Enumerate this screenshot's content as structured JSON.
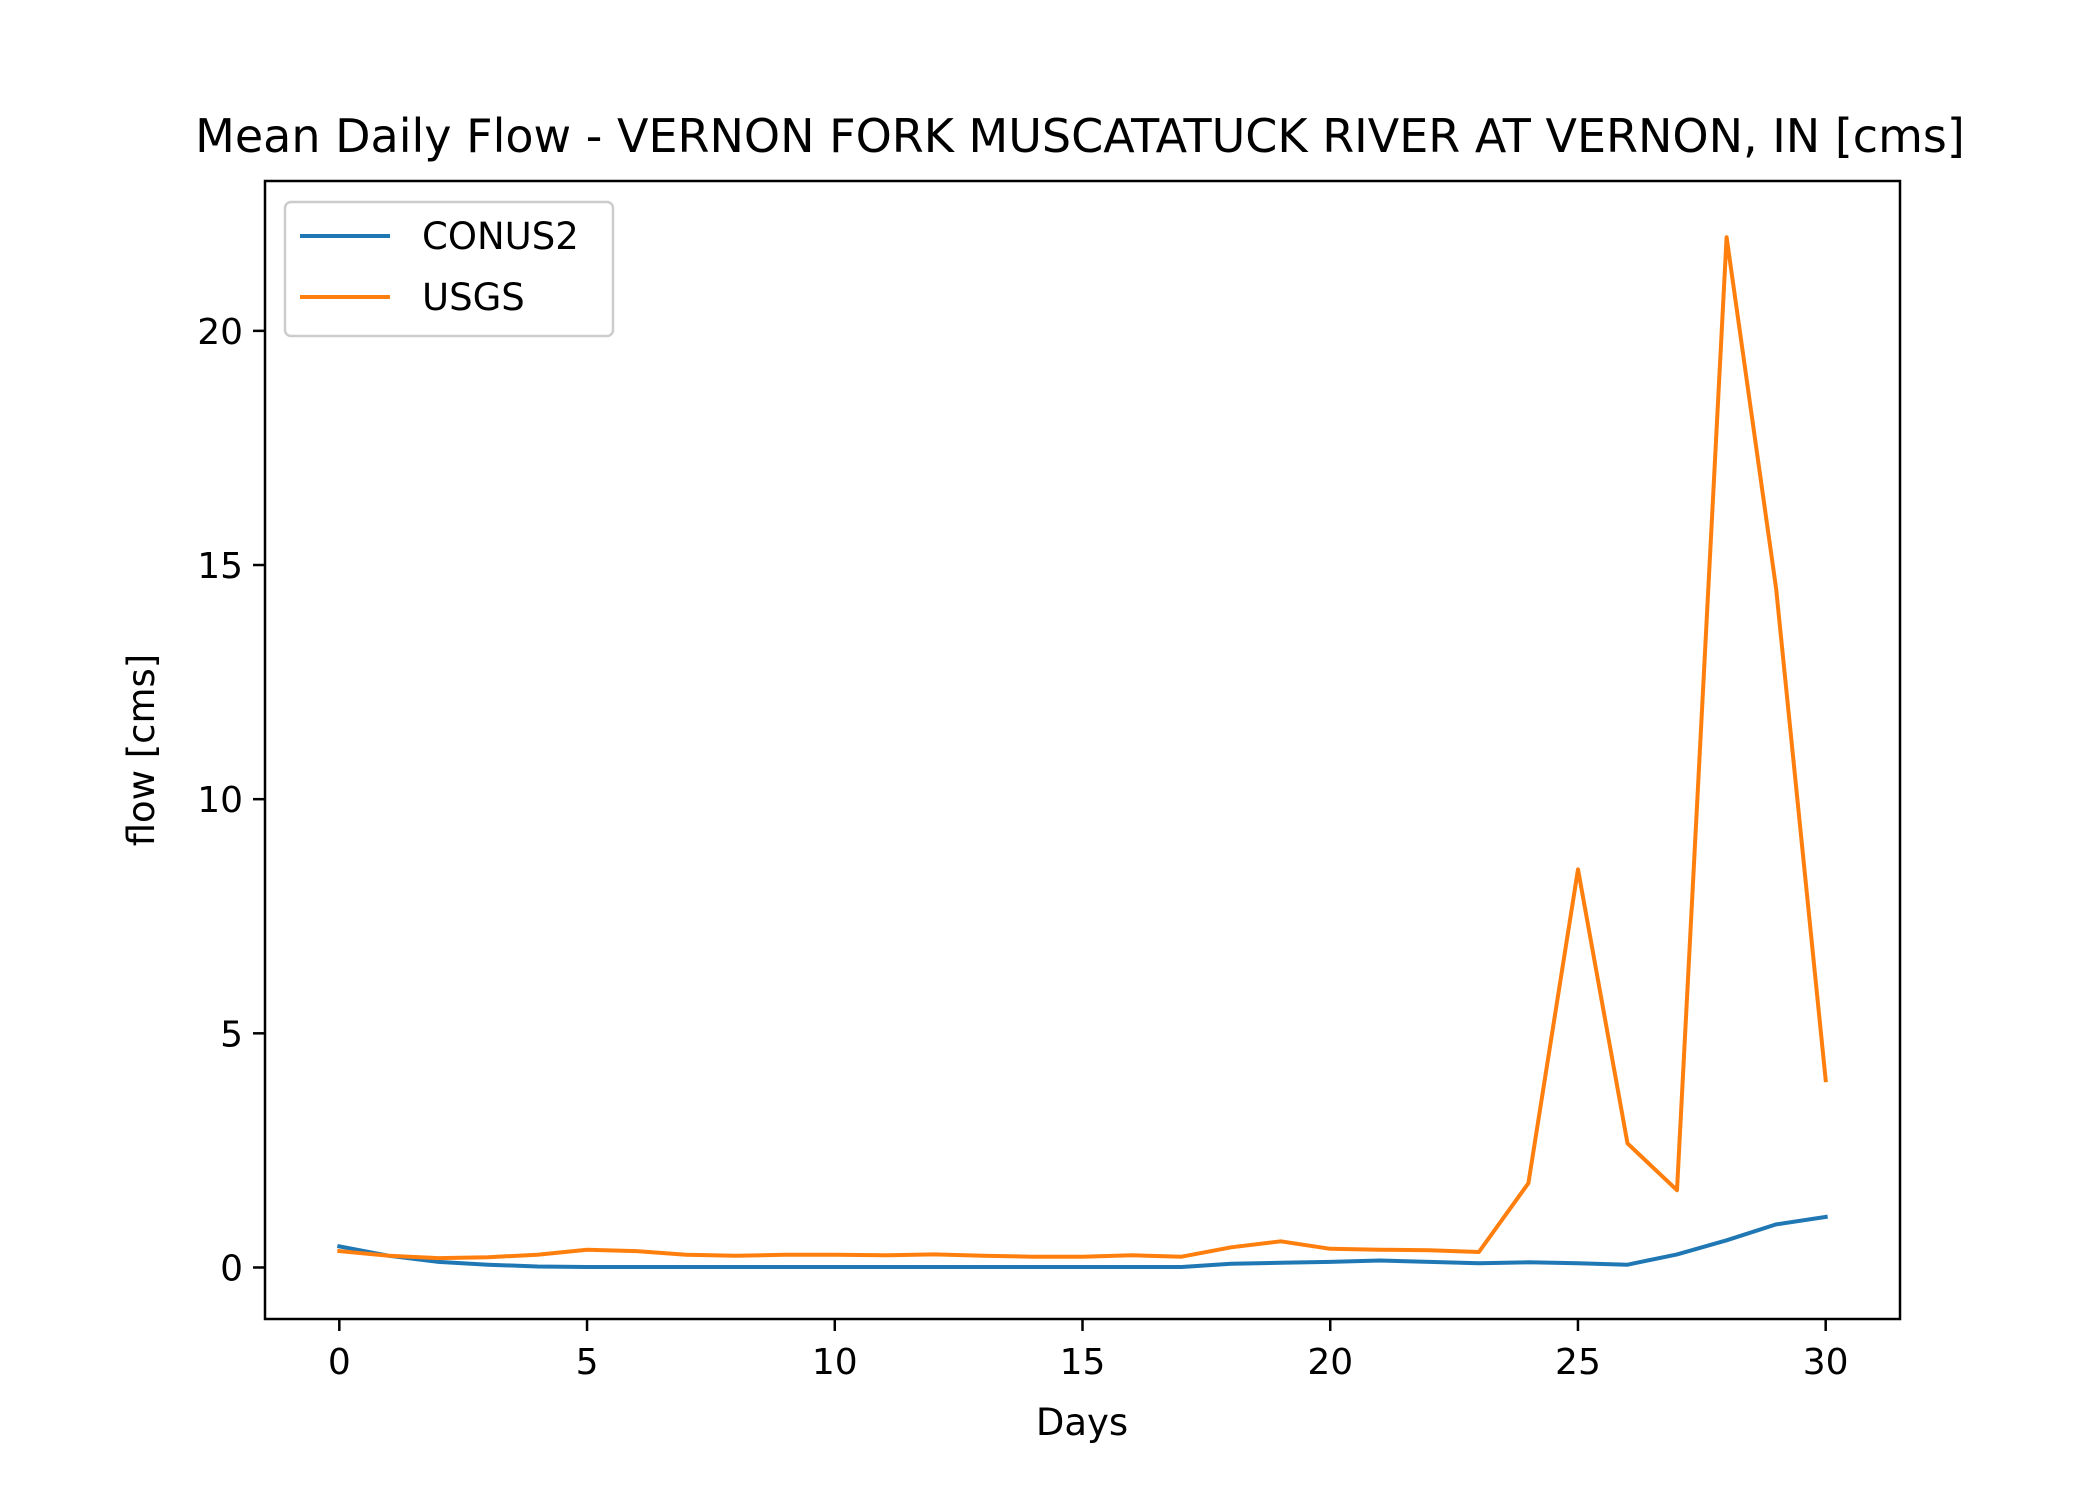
{
  "chart_data": {
    "type": "line",
    "title": "Mean Daily Flow - VERNON FORK MUSCATATUCK RIVER AT VERNON, IN [cms]",
    "xlabel": "Days",
    "ylabel": "flow [cms]",
    "xlim": [
      -1.5,
      31.5
    ],
    "ylim": [
      -1.1,
      23.2
    ],
    "xticks": [
      0,
      5,
      10,
      15,
      20,
      25,
      30
    ],
    "xtick_labels": [
      "0",
      "5",
      "10",
      "15",
      "20",
      "25",
      "30"
    ],
    "yticks": [
      0,
      5,
      10,
      15,
      20
    ],
    "ytick_labels": [
      "0",
      "5",
      "10",
      "15",
      "20"
    ],
    "grid": false,
    "legend_position": "top-left",
    "x": [
      0,
      1,
      2,
      3,
      4,
      5,
      6,
      7,
      8,
      9,
      10,
      11,
      12,
      13,
      14,
      15,
      16,
      17,
      18,
      19,
      20,
      21,
      22,
      23,
      24,
      25,
      26,
      27,
      28,
      29,
      30
    ],
    "series": [
      {
        "name": "CONUS2",
        "color": "#1f77b4",
        "values": [
          0.45,
          0.25,
          0.12,
          0.06,
          0.02,
          0.01,
          0.01,
          0.01,
          0.01,
          0.01,
          0.01,
          0.01,
          0.01,
          0.01,
          0.01,
          0.01,
          0.01,
          0.01,
          0.08,
          0.1,
          0.12,
          0.15,
          0.12,
          0.09,
          0.11,
          0.09,
          0.06,
          0.28,
          0.58,
          0.92,
          1.08
        ]
      },
      {
        "name": "USGS",
        "color": "#ff7f0e",
        "values": [
          0.35,
          0.25,
          0.2,
          0.22,
          0.27,
          0.38,
          0.35,
          0.27,
          0.25,
          0.27,
          0.27,
          0.26,
          0.28,
          0.25,
          0.23,
          0.23,
          0.26,
          0.23,
          0.43,
          0.56,
          0.4,
          0.38,
          0.37,
          0.33,
          1.8,
          8.5,
          2.65,
          1.65,
          22.0,
          14.5,
          4.0
        ]
      }
    ]
  }
}
